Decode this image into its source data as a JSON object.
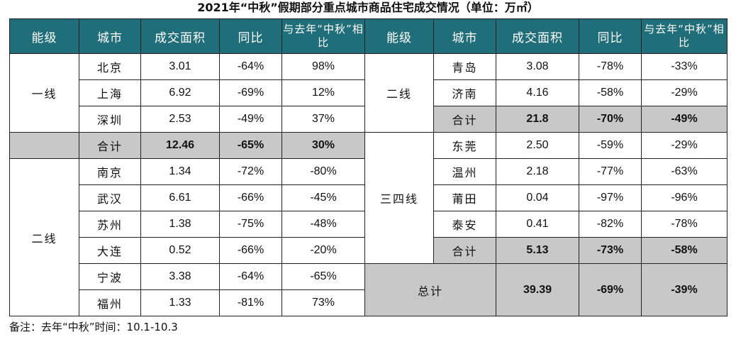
{
  "title": "2021年“中秋”假期部分重点城市商品住宅成交情况（单位：万㎡）",
  "headers": [
    "能级",
    "城市",
    "成交面积",
    "同比",
    "与去年“中秋”相比"
  ],
  "left": {
    "tier1": "一线",
    "tier1_rows": [
      {
        "city": "北京",
        "area": "3.01",
        "yoy": "-64%",
        "vs": "98%"
      },
      {
        "city": "上海",
        "area": "6.92",
        "yoy": "-69%",
        "vs": "12%"
      },
      {
        "city": "深圳",
        "area": "2.53",
        "yoy": "-49%",
        "vs": "37%"
      }
    ],
    "tier1_total": {
      "label": "合计",
      "area": "12.46",
      "yoy": "-65%",
      "vs": "30%"
    },
    "tier2": "二线",
    "tier2_rows": [
      {
        "city": "南京",
        "area": "1.34",
        "yoy": "-72%",
        "vs": "-80%"
      },
      {
        "city": "武汉",
        "area": "6.61",
        "yoy": "-66%",
        "vs": "-45%"
      },
      {
        "city": "苏州",
        "area": "1.38",
        "yoy": "-75%",
        "vs": "-48%"
      },
      {
        "city": "大连",
        "area": "0.52",
        "yoy": "-66%",
        "vs": "-20%"
      },
      {
        "city": "宁波",
        "area": "3.38",
        "yoy": "-64%",
        "vs": "-65%"
      },
      {
        "city": "福州",
        "area": "1.33",
        "yoy": "-81%",
        "vs": "73%"
      }
    ]
  },
  "right": {
    "tier2": "二线",
    "tier2_rows": [
      {
        "city": "青岛",
        "area": "3.08",
        "yoy": "-78%",
        "vs": "-33%"
      },
      {
        "city": "济南",
        "area": "4.16",
        "yoy": "-58%",
        "vs": "-29%"
      }
    ],
    "tier2_total": {
      "label": "合计",
      "area": "21.8",
      "yoy": "-70%",
      "vs": "-49%"
    },
    "tier3": "三四线",
    "tier3_rows": [
      {
        "city": "东莞",
        "area": "2.50",
        "yoy": "-59%",
        "vs": "-29%"
      },
      {
        "city": "温州",
        "area": "2.18",
        "yoy": "-77%",
        "vs": "-63%"
      },
      {
        "city": "莆田",
        "area": "0.04",
        "yoy": "-97%",
        "vs": "-96%"
      },
      {
        "city": "泰安",
        "area": "0.41",
        "yoy": "-82%",
        "vs": "-78%"
      }
    ],
    "tier3_total": {
      "label": "合计",
      "area": "5.13",
      "yoy": "-73%",
      "vs": "-58%"
    },
    "grand_total": {
      "label": "总计",
      "area": "39.39",
      "yoy": "-69%",
      "vs": "-39%"
    }
  },
  "note": "备注：去年“中秋”时间：10.1-10.3",
  "colors": {
    "header_bg": "#1f6e7a",
    "total_bg": "#c8c8c8"
  }
}
